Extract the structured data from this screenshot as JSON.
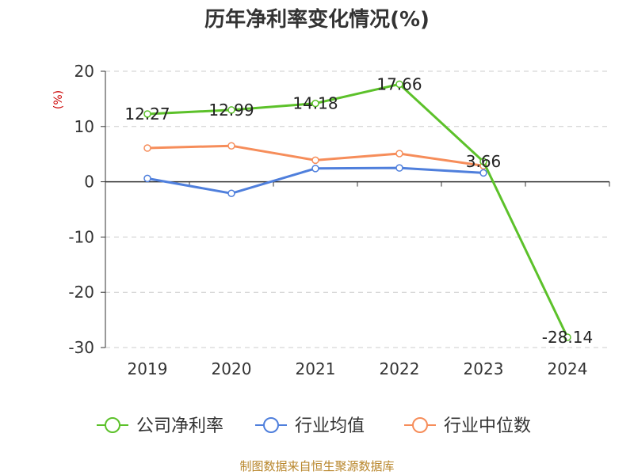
{
  "chart_data": {
    "type": "line",
    "title": "历年净利率变化情况(%)",
    "ylabel": "(%)",
    "categories": [
      "2019",
      "2020",
      "2021",
      "2022",
      "2023",
      "2024"
    ],
    "ylim": [
      -30,
      20
    ],
    "yticks": [
      20,
      10,
      0,
      -10,
      -20,
      -30
    ],
    "grid": true,
    "legend_position": "bottom",
    "series": [
      {
        "name": "公司净利率",
        "color": "#5cc12a",
        "values": [
          12.27,
          12.99,
          14.18,
          17.66,
          3.66,
          -28.14
        ],
        "labels": [
          "12.27",
          "12.99",
          "14.18",
          "17.66",
          "3.66",
          "-28.14"
        ]
      },
      {
        "name": "行业均值",
        "color": "#4f7fdc",
        "values": [
          0.6,
          -2.1,
          2.4,
          2.5,
          1.6,
          null
        ]
      },
      {
        "name": "行业中位数",
        "color": "#f68d5a",
        "values": [
          6.1,
          6.5,
          3.9,
          5.1,
          2.9,
          null
        ]
      }
    ]
  },
  "source": "制图数据来自恒生聚源数据库"
}
